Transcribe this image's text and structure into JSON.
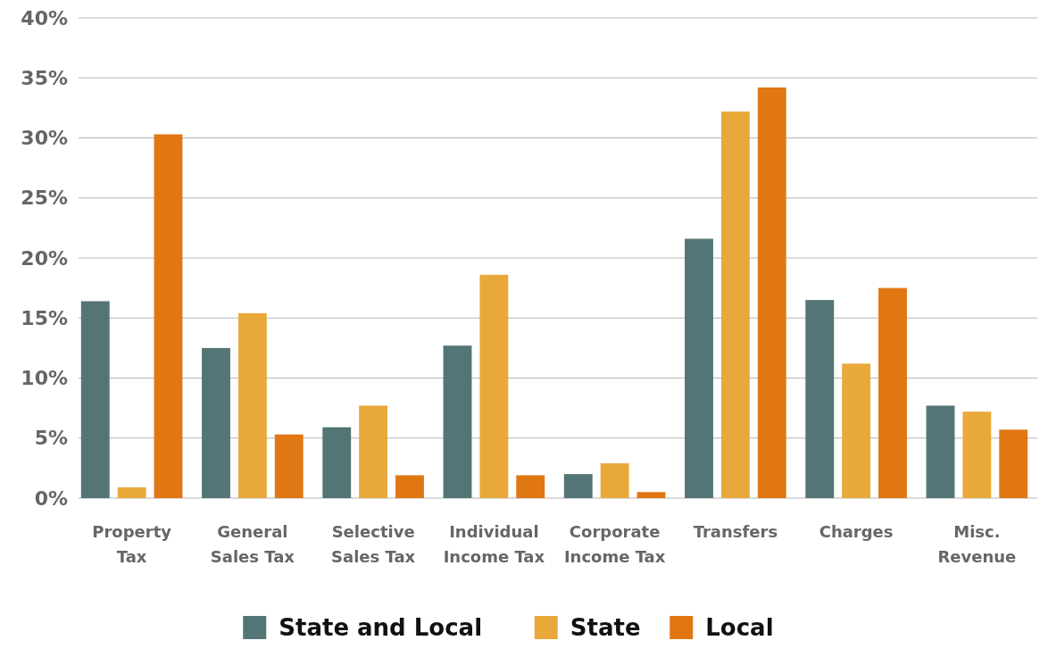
{
  "chart_data": {
    "type": "bar",
    "categories": [
      "Property Tax",
      "General Sales Tax",
      "Selective Sales Tax",
      "Individual Income Tax",
      "Corporate Income Tax",
      "Transfers",
      "Charges",
      "Misc. Revenue"
    ],
    "series": [
      {
        "name": "State and Local",
        "color": "#537575",
        "values": [
          16.4,
          12.5,
          5.9,
          12.7,
          2.0,
          21.6,
          16.5,
          7.7
        ]
      },
      {
        "name": "State",
        "color": "#e9a93a",
        "values": [
          0.9,
          15.4,
          7.7,
          18.6,
          2.9,
          32.2,
          11.2,
          7.2
        ]
      },
      {
        "name": "Local",
        "color": "#e07713",
        "values": [
          30.3,
          5.3,
          1.9,
          1.9,
          0.5,
          34.2,
          17.5,
          5.7
        ]
      }
    ],
    "ylim": [
      0,
      40
    ],
    "yticks": [
      {
        "value": 0,
        "label": "0%"
      },
      {
        "value": 5,
        "label": "5%"
      },
      {
        "value": 10,
        "label": "10%"
      },
      {
        "value": 15,
        "label": "15%"
      },
      {
        "value": 20,
        "label": "20%"
      },
      {
        "value": 25,
        "label": "25%"
      },
      {
        "value": 30,
        "label": "30%"
      },
      {
        "value": 35,
        "label": "35%"
      },
      {
        "value": 40,
        "label": "40%"
      }
    ],
    "grid": "y",
    "legend": "bottom"
  }
}
